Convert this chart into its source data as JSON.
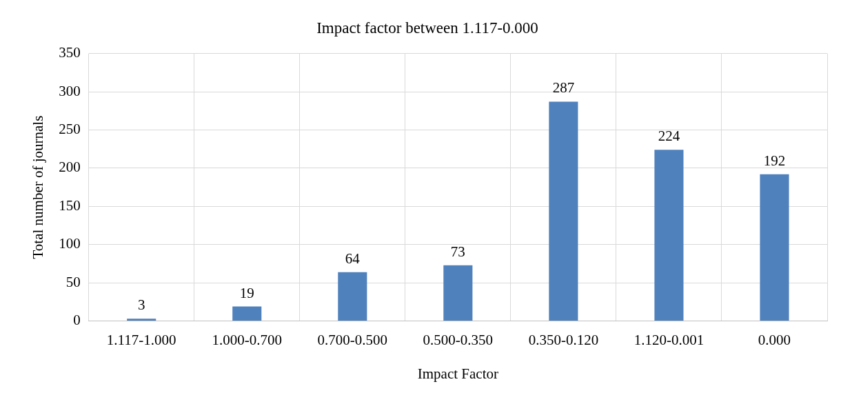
{
  "chart_data": {
    "type": "bar",
    "title": "Impact factor between 1.117-0.000",
    "xlabel": "Impact Factor",
    "ylabel": "Total number of journals",
    "categories": [
      "1.117-1.000",
      "1.000-0.700",
      "0.700-0.500",
      "0.500-0.350",
      "0.350-0.120",
      "1.120-0.001",
      "0.000"
    ],
    "values": [
      3,
      19,
      64,
      73,
      287,
      224,
      192
    ],
    "color": "#4f81bd",
    "ylim": [
      0,
      350
    ],
    "yticks": [
      0,
      50,
      100,
      150,
      200,
      250,
      300,
      350
    ],
    "grid": true,
    "data_labels": true
  }
}
